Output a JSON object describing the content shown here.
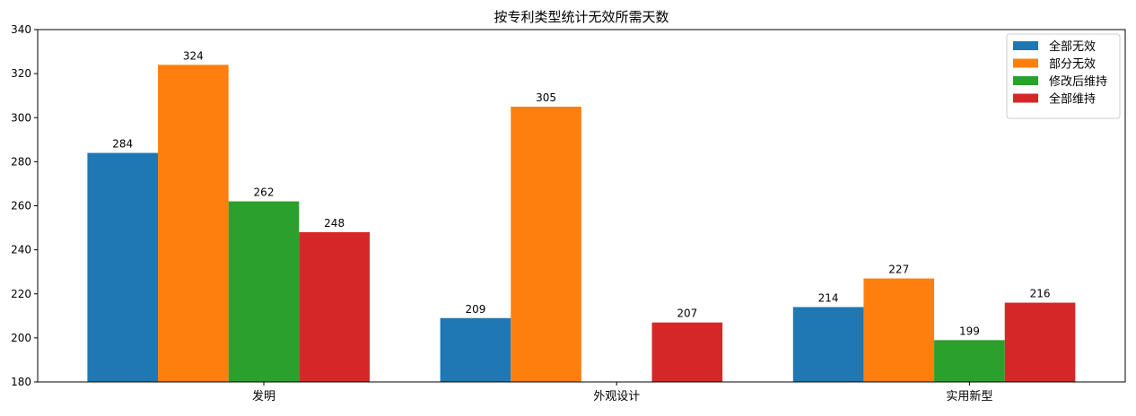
{
  "chart_data": {
    "type": "bar",
    "title": "按专利类型统计无效所需天数",
    "xlabel": "",
    "ylabel": "",
    "categories": [
      "发明",
      "外观设计",
      "实用新型"
    ],
    "series": [
      {
        "name": "全部无效",
        "color": "#1f77b4",
        "values": [
          284,
          209,
          214
        ]
      },
      {
        "name": "部分无效",
        "color": "#ff7f0e",
        "values": [
          324,
          305,
          227
        ]
      },
      {
        "name": "修改后维持",
        "color": "#2ca02c",
        "values": [
          262,
          null,
          199
        ]
      },
      {
        "name": "全部维持",
        "color": "#d62728",
        "values": [
          248,
          207,
          216
        ]
      }
    ],
    "ylim": [
      180,
      340
    ],
    "yticks": [
      180,
      200,
      220,
      240,
      260,
      280,
      300,
      320,
      340
    ],
    "grid": false,
    "legend_position": "top-right",
    "data_labels": true
  }
}
